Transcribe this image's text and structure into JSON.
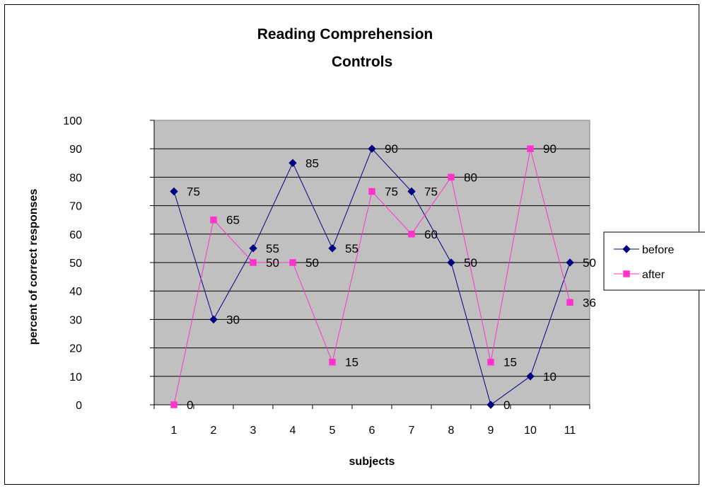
{
  "chart_data": {
    "type": "line",
    "title_lines": [
      "Reading Comprehension",
      "Controls"
    ],
    "xlabel": "subjects",
    "ylabel": "percent of correct responses",
    "categories": [
      "1",
      "2",
      "3",
      "4",
      "5",
      "6",
      "7",
      "8",
      "9",
      "10",
      "11"
    ],
    "ylim": [
      0,
      100
    ],
    "yticks": [
      0,
      10,
      20,
      30,
      40,
      50,
      60,
      70,
      80,
      90,
      100
    ],
    "grid": true,
    "legend_position": "right",
    "series": [
      {
        "name": "before",
        "values": [
          75,
          30,
          55,
          85,
          55,
          90,
          75,
          50,
          0,
          10,
          50
        ],
        "color": "#000080",
        "marker": "diamond"
      },
      {
        "name": "after",
        "values": [
          0,
          65,
          50,
          50,
          15,
          75,
          60,
          80,
          15,
          90,
          36
        ],
        "color": "#FF33CC",
        "marker": "square"
      }
    ],
    "plot_background": "#C0C0C0"
  }
}
